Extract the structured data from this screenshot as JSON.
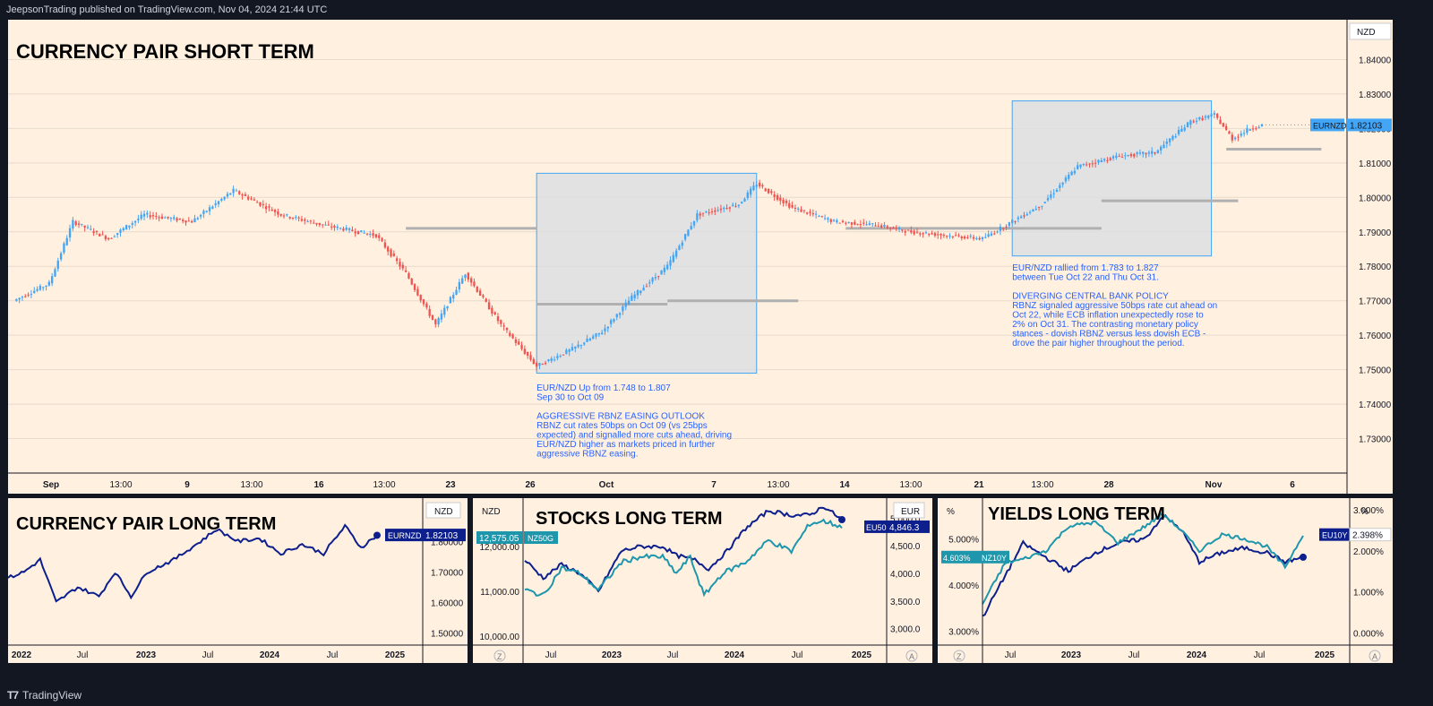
{
  "header": {
    "text": "JeepsonTrading published on TradingView.com, Nov 04, 2024 21:44 UTC"
  },
  "footer": {
    "brand": "TradingView"
  },
  "colors": {
    "up": "#42a5f5",
    "down": "#ef5350",
    "navy": "#0d1f8c",
    "teal": "#1e97ad",
    "bg": "#fff0e0"
  },
  "chart_data": [
    {
      "id": "main",
      "type": "candlestick",
      "title": "CURRENCY PAIR SHORT TERM",
      "currency": "NZD",
      "symbol": "EURNZD",
      "last_value": "1.82103",
      "ylim": [
        1.72,
        1.85
      ],
      "y_ticks": [
        "1.84000",
        "1.83000",
        "1.82000",
        "1.81000",
        "1.80000",
        "1.79000",
        "1.78000",
        "1.77000",
        "1.76000",
        "1.75000",
        "1.74000",
        "1.73000"
      ],
      "x_ticks": [
        "Sep",
        "13:00",
        "9",
        "13:00",
        "16",
        "13:00",
        "23",
        "26",
        "Oct",
        "7",
        "13:00",
        "14",
        "13:00",
        "21",
        "13:00",
        "28",
        "Nov",
        "6"
      ],
      "anchors": [
        [
          0,
          1.77
        ],
        [
          12,
          1.775
        ],
        [
          20,
          1.793
        ],
        [
          32,
          1.788
        ],
        [
          44,
          1.795
        ],
        [
          60,
          1.793
        ],
        [
          74,
          1.802
        ],
        [
          90,
          1.795
        ],
        [
          104,
          1.792
        ],
        [
          122,
          1.789
        ],
        [
          132,
          1.778
        ],
        [
          142,
          1.763
        ],
        [
          152,
          1.778
        ],
        [
          164,
          1.763
        ],
        [
          176,
          1.751
        ],
        [
          188,
          1.756
        ],
        [
          198,
          1.761
        ],
        [
          208,
          1.771
        ],
        [
          220,
          1.78
        ],
        [
          230,
          1.795
        ],
        [
          244,
          1.798
        ],
        [
          250,
          1.804
        ],
        [
          262,
          1.797
        ],
        [
          276,
          1.793
        ],
        [
          290,
          1.792
        ],
        [
          302,
          1.79
        ],
        [
          314,
          1.789
        ],
        [
          326,
          1.788
        ],
        [
          334,
          1.792
        ],
        [
          346,
          1.798
        ],
        [
          358,
          1.809
        ],
        [
          372,
          1.812
        ],
        [
          384,
          1.813
        ],
        [
          396,
          1.822
        ],
        [
          404,
          1.824
        ],
        [
          410,
          1.817
        ],
        [
          416,
          1.82
        ],
        [
          420,
          1.821
        ]
      ],
      "boxes": [
        {
          "from": 176,
          "to": 250,
          "low": 1.749,
          "high": 1.807
        },
        {
          "from": 336,
          "to": 403,
          "low": 1.783,
          "high": 1.828
        }
      ],
      "levels": [
        {
          "from": 132,
          "to": 176,
          "y": 1.791
        },
        {
          "from": 176,
          "to": 220,
          "y": 1.769
        },
        {
          "from": 220,
          "to": 264,
          "y": 1.77
        },
        {
          "from": 280,
          "to": 366,
          "y": 1.791
        },
        {
          "from": 366,
          "to": 412,
          "y": 1.799
        },
        {
          "from": 408,
          "to": 440,
          "y": 1.814
        }
      ],
      "notes": [
        {
          "lines": [
            "EUR/NZD Up from 1.748 to 1.807",
            "Sep 30 to Oct 09",
            "",
            "AGGRESSIVE RBNZ EASING OUTLOOK",
            "RBNZ cut rates 50bps on Oct 09 (vs 25bps",
            "expected) and signalled more cuts ahead, driving",
            "EUR/NZD higher as markets priced in further",
            "aggressive RBNZ easing."
          ]
        },
        {
          "lines": [
            "EUR/NZD rallied from 1.783 to 1.827",
            "between Tue Oct 22 and Thu Oct 31.",
            "",
            "DIVERGING CENTRAL BANK POLICY",
            "RBNZ signaled aggressive 50bps rate cut ahead on",
            "Oct 22, while ECB inflation unexpectedly rose to",
            "2% on Oct 31. The contrasting monetary policy",
            "stances - dovish RBNZ versus less dovish ECB -",
            "drove the pair higher throughout the period."
          ]
        }
      ]
    },
    {
      "id": "currency_lt",
      "type": "line",
      "title": "CURRENCY PAIR LONG TERM",
      "currency": "NZD",
      "symbol": "EURNZD",
      "last_value": "1.82103",
      "ylim": [
        1.46,
        1.93
      ],
      "y_ticks": [
        "1.80000",
        "1.70000",
        "1.60000",
        "1.50000"
      ],
      "x_ticks": [
        "2022",
        "Jul",
        "2023",
        "Jul",
        "2024",
        "Jul",
        "2025"
      ],
      "series": [
        {
          "name": "EURNZD",
          "color": "#0d1f8c",
          "anchors": [
            [
              0,
              1.68
            ],
            [
              6,
              1.7
            ],
            [
              12,
              1.74
            ],
            [
              18,
              1.6
            ],
            [
              26,
              1.65
            ],
            [
              34,
              1.62
            ],
            [
              40,
              1.7
            ],
            [
              46,
              1.62
            ],
            [
              52,
              1.7
            ],
            [
              62,
              1.74
            ],
            [
              72,
              1.8
            ],
            [
              78,
              1.84
            ],
            [
              86,
              1.8
            ],
            [
              94,
              1.81
            ],
            [
              102,
              1.76
            ],
            [
              110,
              1.79
            ],
            [
              118,
              1.76
            ],
            [
              126,
              1.85
            ],
            [
              132,
              1.78
            ],
            [
              138,
              1.82
            ]
          ]
        }
      ]
    },
    {
      "id": "stocks_lt",
      "type": "line",
      "title": "STOCKS LONG TERM",
      "left_currency": "NZD",
      "right_currency": "EUR",
      "left_label": {
        "value": "12,575.05",
        "symbol": "NZ50G"
      },
      "right_label": {
        "symbol": "EU50",
        "value": "4,846.3"
      },
      "ylim_left": [
        9800,
        13000
      ],
      "ylim_right": [
        2700,
        5300
      ],
      "y_ticks_left": [
        "12,000.00",
        "11,000.00",
        "10,000.00"
      ],
      "y_ticks_right": [
        "5,000.0",
        "4,500.0",
        "4,000.0",
        "3,500.0",
        "3,000.0"
      ],
      "x_ticks": [
        "Jul",
        "2023",
        "Jul",
        "2024",
        "Jul",
        "2025"
      ],
      "footer_left": "Z",
      "footer_right": "A",
      "series": [
        {
          "name": "NZ50G",
          "color": "#0d1f8c",
          "axis": "left",
          "anchors": [
            [
              0,
              11700
            ],
            [
              8,
              11300
            ],
            [
              16,
              11600
            ],
            [
              24,
              11400
            ],
            [
              32,
              11000
            ],
            [
              42,
              11900
            ],
            [
              50,
              12000
            ],
            [
              60,
              12000
            ],
            [
              66,
              11800
            ],
            [
              74,
              11700
            ],
            [
              80,
              11500
            ],
            [
              88,
              11900
            ],
            [
              96,
              12400
            ],
            [
              106,
              12800
            ],
            [
              116,
              12700
            ],
            [
              124,
              12700
            ],
            [
              130,
              12900
            ],
            [
              138,
              12600
            ]
          ]
        },
        {
          "name": "EU50",
          "color": "#1e97ad",
          "axis": "right",
          "anchors": [
            [
              0,
              3700
            ],
            [
              8,
              3600
            ],
            [
              16,
              4100
            ],
            [
              24,
              4000
            ],
            [
              32,
              3700
            ],
            [
              42,
              4200
            ],
            [
              50,
              4300
            ],
            [
              60,
              4300
            ],
            [
              66,
              4000
            ],
            [
              72,
              4300
            ],
            [
              78,
              3600
            ],
            [
              86,
              4000
            ],
            [
              96,
              4200
            ],
            [
              106,
              4600
            ],
            [
              116,
              4400
            ],
            [
              124,
              4900
            ],
            [
              130,
              4950
            ],
            [
              138,
              4846
            ]
          ]
        }
      ]
    },
    {
      "id": "yields_lt",
      "type": "line",
      "title": "YIELDS LONG TERM",
      "left_currency": "%",
      "right_currency": "%",
      "left_label": {
        "value": "4.603%",
        "symbol": "NZ10Y"
      },
      "right_label": {
        "symbol": "EU10Y",
        "value": "2.398%"
      },
      "ylim_left": [
        2.7,
        5.8
      ],
      "ylim_right": [
        -0.3,
        3.2
      ],
      "y_ticks_left": [
        "5.000%",
        "4.000%",
        "3.000%"
      ],
      "y_ticks_right": [
        "3.000%",
        "2.000%",
        "1.000%",
        "0.000%"
      ],
      "x_ticks": [
        "Jul",
        "2023",
        "Jul",
        "2024",
        "Jul",
        "2025"
      ],
      "footer_left": "Z",
      "footer_right": "A",
      "series": [
        {
          "name": "NZ10Y",
          "color": "#0d1f8c",
          "axis": "left",
          "anchors": [
            [
              0,
              3.3
            ],
            [
              10,
              4.2
            ],
            [
              18,
              4.9
            ],
            [
              28,
              4.6
            ],
            [
              38,
              4.3
            ],
            [
              50,
              4.7
            ],
            [
              60,
              4.9
            ],
            [
              72,
              5.0
            ],
            [
              80,
              5.5
            ],
            [
              88,
              5.2
            ],
            [
              96,
              4.5
            ],
            [
              106,
              4.7
            ],
            [
              116,
              4.8
            ],
            [
              126,
              4.7
            ],
            [
              134,
              4.5
            ],
            [
              142,
              4.6
            ]
          ]
        },
        {
          "name": "EU10Y",
          "color": "#1e97ad",
          "axis": "right",
          "anchors": [
            [
              0,
              0.7
            ],
            [
              10,
              1.7
            ],
            [
              18,
              1.8
            ],
            [
              28,
              2.0
            ],
            [
              38,
              2.6
            ],
            [
              50,
              2.7
            ],
            [
              60,
              2.2
            ],
            [
              72,
              2.6
            ],
            [
              80,
              2.9
            ],
            [
              88,
              2.5
            ],
            [
              96,
              2.0
            ],
            [
              106,
              2.4
            ],
            [
              116,
              2.3
            ],
            [
              126,
              2.1
            ],
            [
              134,
              1.6
            ],
            [
              142,
              2.4
            ]
          ]
        }
      ]
    }
  ]
}
